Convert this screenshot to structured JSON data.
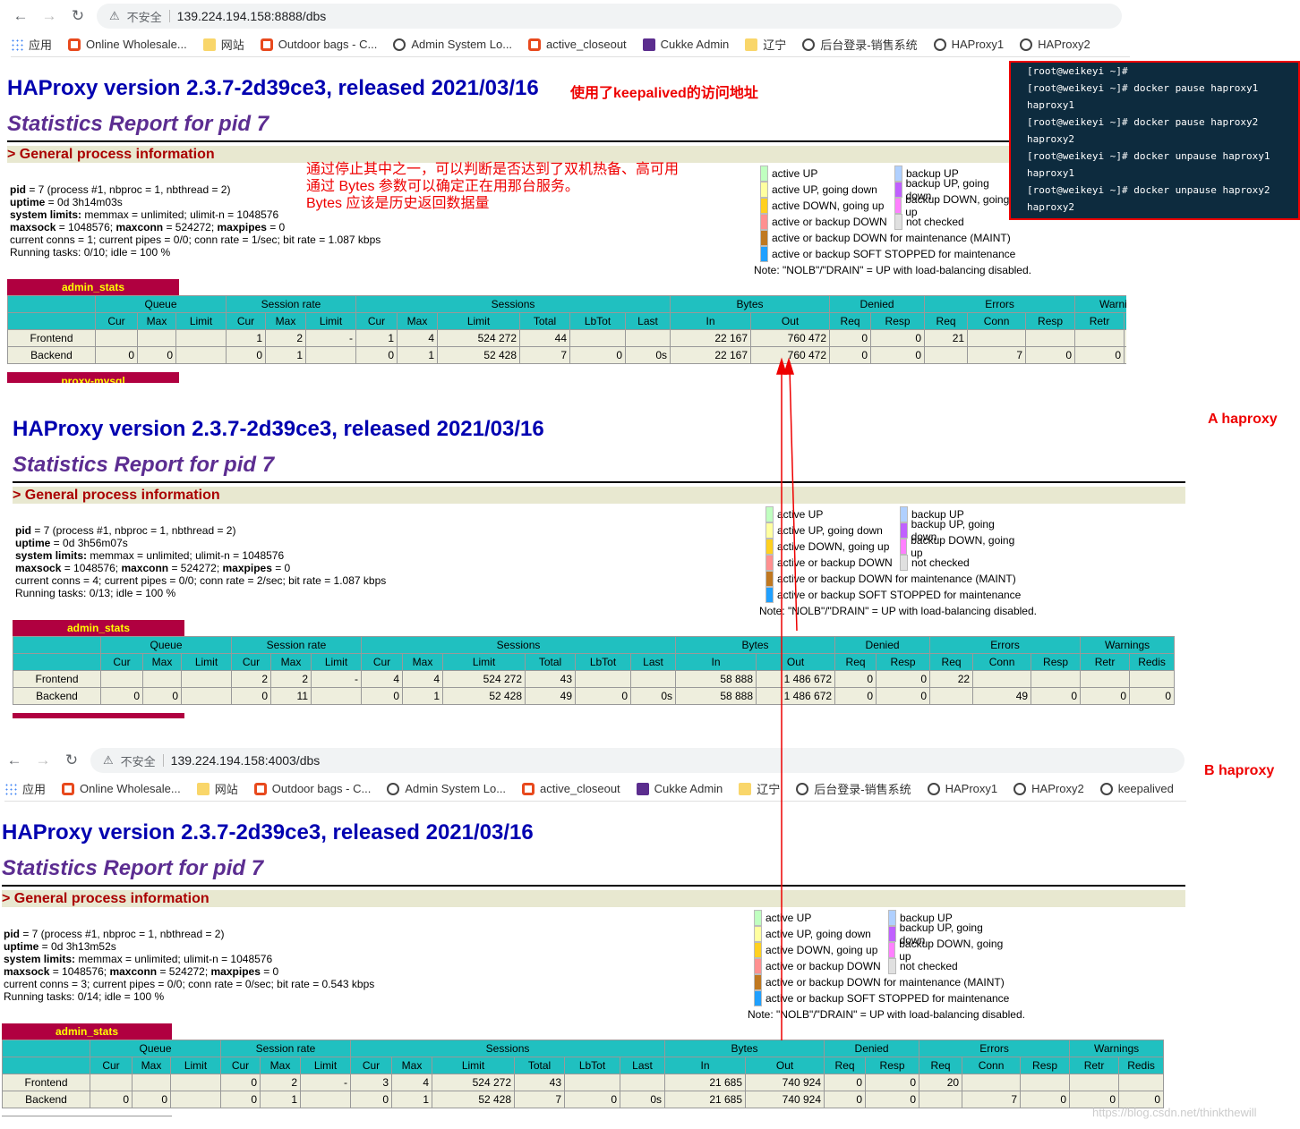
{
  "browser1": {
    "security": "不安全",
    "url": "139.224.194.158:8888/dbs"
  },
  "browser2": {
    "security": "不安全",
    "url": "139.224.194.158:4003/dbs"
  },
  "bookmarks1": [
    "应用",
    "Online Wholesale...",
    "网站",
    "Outdoor bags - C...",
    "Admin System Lo...",
    "active_closeout",
    "Cukke Admin",
    "辽宁",
    "后台登录-销售系统",
    "HAProxy1",
    "HAProxy2"
  ],
  "bookmarks2": [
    "应用",
    "Online Wholesale...",
    "网站",
    "Outdoor bags - C...",
    "Admin System Lo...",
    "active_closeout",
    "Cukke Admin",
    "辽宁",
    "后台登录-销售系统",
    "HAProxy1",
    "HAProxy2",
    "keepalived"
  ],
  "title": "HAProxy version 2.3.7-2d39ce3, released 2021/03/16",
  "subtitle": "Statistics Report for pid 7",
  "gpi": "> General process information",
  "annot_keepalived": "使用了keepalived的访问地址",
  "annot_lines": [
    "通过停止其中之一，可以判断是否达到了双机热备、高可用",
    "通过 Bytes 参数可以确定正在用那台服务。",
    "Bytes 应该是历史返回数据量"
  ],
  "label_a": "A haproxy",
  "label_b": "B haproxy",
  "terminal": [
    "[root@weikeyi ~]#",
    "[root@weikeyi ~]# docker pause haproxy1",
    "haproxy1",
    "[root@weikeyi ~]# docker pause haproxy2",
    "haproxy2",
    "[root@weikeyi ~]# docker unpause haproxy1",
    "haproxy1",
    "[root@weikeyi ~]# docker unpause haproxy2",
    "haproxy2"
  ],
  "legend_left": [
    "active UP",
    "active UP, going down",
    "active DOWN, going up",
    "active or backup DOWN",
    "active or backup DOWN for maintenance (MAINT)",
    "active or backup SOFT STOPPED for maintenance"
  ],
  "legend_right": [
    "backup UP",
    "backup UP, going down",
    "backup DOWN, going up",
    "not checked"
  ],
  "legend_note": "Note: \"NOLB\"/\"DRAIN\" = UP with load-balancing disabled.",
  "table_groups": [
    "Queue",
    "Session rate",
    "Sessions",
    "Bytes",
    "Denied",
    "Errors",
    "Warnings"
  ],
  "table_cols": [
    "Cur",
    "Max",
    "Limit",
    "Cur",
    "Max",
    "Limit",
    "Cur",
    "Max",
    "Limit",
    "Total",
    "LbTot",
    "Last",
    "In",
    "Out",
    "Req",
    "Resp",
    "Req",
    "Conn",
    "Resp",
    "Retr",
    "Redis"
  ],
  "proxy_name": "admin_stats",
  "proxy_name2": "proxy-mysql",
  "info_labels": {
    "pid": "pid",
    "uptime": "uptime",
    "syslimits": "system limits:",
    "maxsock": "maxsock",
    "maxconn": "maxconn",
    "maxpipes": "maxpipes"
  },
  "panels": [
    {
      "info": {
        "pid": " = 7 (process #1, nbproc = 1, nbthread = 2)",
        "uptime": " = 0d 3h14m03s",
        "syslimits": " memmax = unlimited; ulimit-n = 1048576",
        "maxsock": " = 1048576; ",
        "maxconn": " = 524272; ",
        "maxpipes": " = 0",
        "conns": "current conns = 1; current pipes = 0/0; conn rate = 1/sec; bit rate = 1.087 kbps",
        "tasks": "Running tasks: 0/10; idle = 100 %"
      },
      "rows": [
        [
          "Frontend",
          "",
          "",
          "",
          "1",
          "2",
          "-",
          "1",
          "4",
          "524 272",
          "44",
          "",
          "",
          "22 167",
          "760 472",
          "0",
          "0",
          "21",
          "",
          "",
          "",
          ""
        ],
        [
          "Backend",
          "0",
          "0",
          "",
          "0",
          "1",
          "",
          "0",
          "1",
          "52 428",
          "7",
          "0",
          "0s",
          "22 167",
          "760 472",
          "0",
          "0",
          "",
          "7",
          "0",
          "0",
          ""
        ]
      ]
    },
    {
      "info": {
        "pid": " = 7 (process #1, nbproc = 1, nbthread = 2)",
        "uptime": " = 0d 3h56m07s",
        "syslimits": " memmax = unlimited; ulimit-n = 1048576",
        "maxsock": " = 1048576; ",
        "maxconn": " = 524272; ",
        "maxpipes": " = 0",
        "conns": "current conns = 4; current pipes = 0/0; conn rate = 2/sec; bit rate = 1.087 kbps",
        "tasks": "Running tasks: 0/13; idle = 100 %"
      },
      "rows": [
        [
          "Frontend",
          "",
          "",
          "",
          "2",
          "2",
          "-",
          "4",
          "4",
          "524 272",
          "43",
          "",
          "",
          "58 888",
          "1 486 672",
          "0",
          "0",
          "22",
          "",
          "",
          "",
          ""
        ],
        [
          "Backend",
          "0",
          "0",
          "",
          "0",
          "11",
          "",
          "0",
          "1",
          "52 428",
          "49",
          "0",
          "0s",
          "58 888",
          "1 486 672",
          "0",
          "0",
          "",
          "49",
          "0",
          "0",
          "0"
        ]
      ]
    },
    {
      "info": {
        "pid": " = 7 (process #1, nbproc = 1, nbthread = 2)",
        "uptime": " = 0d 3h13m52s",
        "syslimits": " memmax = unlimited; ulimit-n = 1048576",
        "maxsock": " = 1048576; ",
        "maxconn": " = 524272; ",
        "maxpipes": " = 0",
        "conns": "current conns = 3; current pipes = 0/0; conn rate = 0/sec; bit rate = 0.543 kbps",
        "tasks": "Running tasks: 0/14; idle = 100 %"
      },
      "rows": [
        [
          "Frontend",
          "",
          "",
          "",
          "0",
          "2",
          "-",
          "3",
          "4",
          "524 272",
          "43",
          "",
          "",
          "21 685",
          "740 924",
          "0",
          "0",
          "20",
          "",
          "",
          "",
          ""
        ],
        [
          "Backend",
          "0",
          "0",
          "",
          "0",
          "1",
          "",
          "0",
          "1",
          "52 428",
          "7",
          "0",
          "0s",
          "21 685",
          "740 924",
          "0",
          "0",
          "",
          "7",
          "0",
          "0",
          "0"
        ]
      ]
    }
  ],
  "colors": {
    "legend": [
      "#c0ffc0",
      "#ffffa0",
      "#ffd020",
      "#ff9090",
      "#c07820",
      "#20a0ff"
    ],
    "legend_right": [
      "#b0d0ff",
      "#c060ff",
      "#ff80ff",
      "#e0e0e0"
    ]
  },
  "watermark": "https://blog.csdn.net/thinkthewill"
}
